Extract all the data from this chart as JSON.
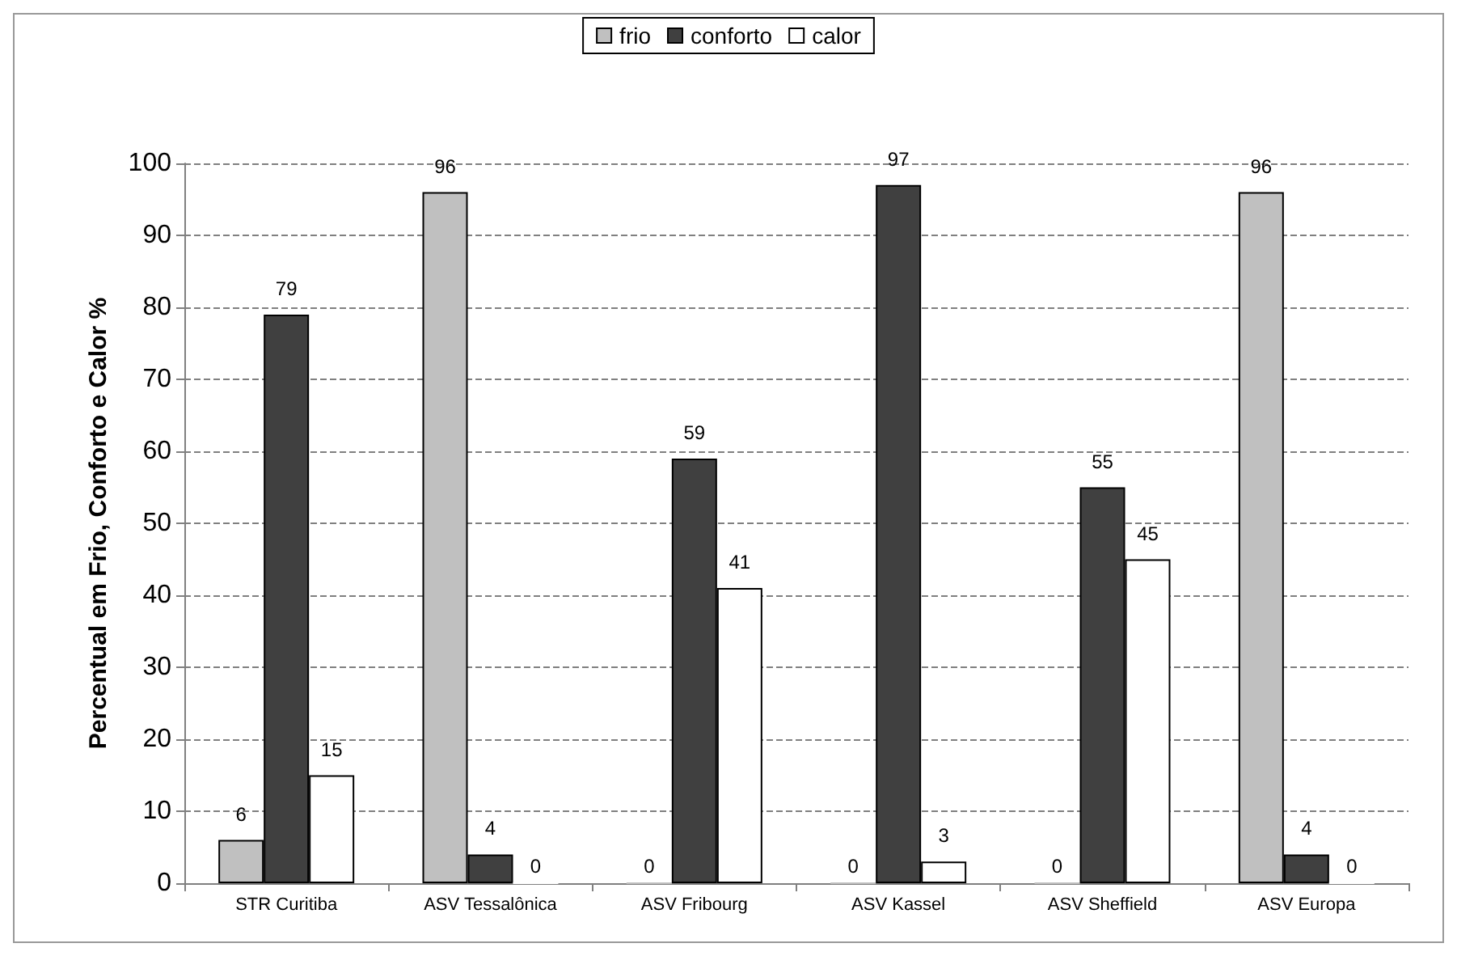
{
  "chart_data": {
    "type": "bar",
    "ylabel": "Percentual em Frio, Conforto e Calor %",
    "categories": [
      "STR Curitiba",
      "ASV Tessalônica",
      "ASV Fribourg",
      "ASV Kassel",
      "ASV Sheffield",
      "ASV Europa"
    ],
    "series": [
      {
        "name": "frio",
        "color": "#c0c0c0",
        "values": [
          6,
          96,
          0,
          0,
          0,
          96
        ]
      },
      {
        "name": "conforto",
        "color": "#404040",
        "values": [
          79,
          4,
          59,
          97,
          55,
          4
        ]
      },
      {
        "name": "calor",
        "color": "#ffffff",
        "values": [
          15,
          0,
          41,
          3,
          45,
          0
        ]
      }
    ],
    "ylim": [
      0,
      100
    ],
    "yticks": [
      0,
      10,
      20,
      30,
      40,
      50,
      60,
      70,
      80,
      90,
      100
    ],
    "grid": "y",
    "legend": "top",
    "data_labels": true
  }
}
